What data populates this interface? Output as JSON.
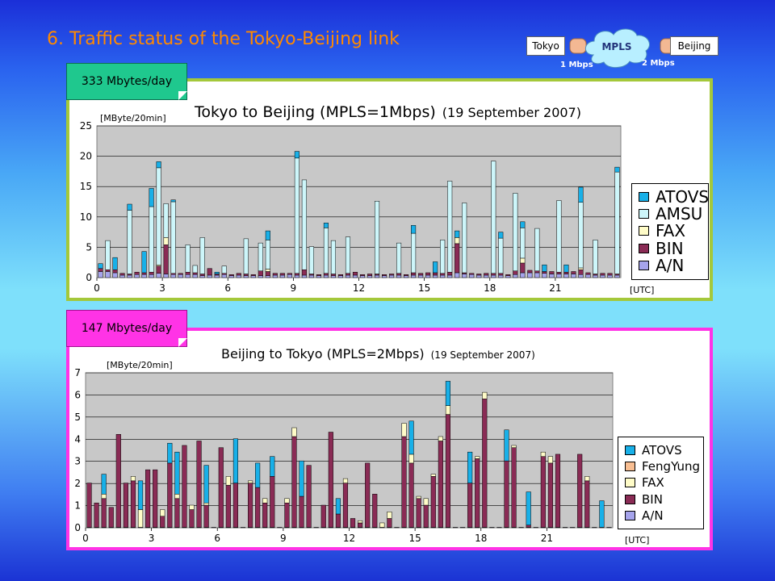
{
  "slide": {
    "title": "6.  Traffic status of the Tokyo-Beijing link"
  },
  "diagram": {
    "left": "Tokyo",
    "center": "MPLS",
    "right": "Beijing",
    "left_rate": "1 Mbps",
    "right_rate": "2 Mbps"
  },
  "notes": {
    "top": "333 Mbytes/day",
    "bottom": "147 Mbytes/day"
  },
  "colors": {
    "ATOVS": "#18b0e8",
    "AMSU": "#cdf6fa",
    "FengYung": "#f8be92",
    "FAX": "#fffcc8",
    "BIN": "#8a2b55",
    "A/N": "#a6a4ec"
  },
  "chart_data": [
    {
      "type": "bar",
      "stacked": true,
      "title": "Tokyo to Beijing (MPLS=1Mbps)",
      "subtitle": "(19 September 2007)",
      "ylabel": "[MByte/20min]",
      "xlabel": "[UTC]",
      "ylim": [
        0,
        25
      ],
      "yticks": [
        0,
        5,
        10,
        15,
        20,
        25
      ],
      "xticks": [
        0,
        3,
        6,
        9,
        12,
        15,
        18,
        21
      ],
      "x_start": 0,
      "x_step": 0.3333,
      "legend": [
        "ATOVS",
        "AMSU",
        "FAX",
        "BIN",
        "A/N"
      ],
      "legend_position": "right",
      "series": [
        {
          "name": "A/N",
          "values": [
            1.0,
            1.0,
            0.8,
            0.4,
            0.4,
            0.5,
            0.5,
            0.5,
            0.7,
            0.6,
            0.5,
            0.5,
            0.5,
            0.5,
            0.3,
            0.4,
            0.4,
            0.5,
            0.3,
            0.4,
            0.3,
            0.3,
            0.3,
            0.3,
            0.4,
            0.4,
            0.5,
            0.4,
            0.4,
            0.4,
            0.3,
            0.4,
            0.3,
            0.3,
            0.4,
            0.4,
            0.3,
            0.3,
            0.4,
            0.3,
            0.4,
            0.4,
            0.3,
            0.4,
            0.4,
            0.4,
            0.4,
            0.4,
            0.4,
            0.8,
            0.6,
            0.5,
            0.4,
            0.4,
            0.4,
            0.4,
            0.3,
            0.5,
            0.8,
            0.8,
            0.8,
            0.7,
            0.6,
            0.6,
            0.6,
            0.6,
            0.5,
            0.5,
            0.4,
            0.4,
            0.4,
            0.4
          ]
        },
        {
          "name": "BIN",
          "values": [
            0.5,
            0.3,
            0.5,
            0.3,
            0.2,
            0.4,
            0.3,
            0.4,
            1.2,
            4.8,
            0.2,
            0.2,
            0.4,
            0.3,
            0.3,
            1.1,
            0.2,
            0.2,
            0.2,
            0.3,
            0.3,
            0.2,
            0.8,
            0.7,
            0.3,
            0.3,
            0.2,
            0.3,
            0.9,
            0.2,
            0.2,
            0.3,
            0.3,
            0.2,
            0.3,
            0.5,
            0.2,
            0.3,
            0.2,
            0.2,
            0.2,
            0.3,
            0.2,
            0.4,
            0.3,
            0.4,
            0.4,
            0.3,
            0.5,
            4.8,
            0.2,
            0.2,
            0.2,
            0.3,
            0.3,
            0.3,
            0.2,
            0.6,
            1.6,
            0.4,
            0.3,
            0.3,
            0.4,
            0.3,
            0.3,
            0.4,
            0.8,
            0.3,
            0.2,
            0.3,
            0.3,
            0.2
          ]
        },
        {
          "name": "FAX",
          "values": [
            0.0,
            0.0,
            0.0,
            0.0,
            0.0,
            0.0,
            0.0,
            0.0,
            0.2,
            1.2,
            0.0,
            0.0,
            0.0,
            0.0,
            0.0,
            0.0,
            0.0,
            0.0,
            0.0,
            0.0,
            0.0,
            0.0,
            0.0,
            0.4,
            0.0,
            0.0,
            0.0,
            0.0,
            0.0,
            0.0,
            0.0,
            0.0,
            0.0,
            0.0,
            0.0,
            0.0,
            0.0,
            0.0,
            0.0,
            0.0,
            0.0,
            0.0,
            0.0,
            0.0,
            0.0,
            0.0,
            0.0,
            0.0,
            0.0,
            1.0,
            0.0,
            0.0,
            0.0,
            0.0,
            0.0,
            0.0,
            0.0,
            0.0,
            0.8,
            0.0,
            0.0,
            0.0,
            0.0,
            0.0,
            0.0,
            0.0,
            0.3,
            0.0,
            0.0,
            0.0,
            0.0,
            0.0
          ]
        },
        {
          "name": "AMSU",
          "values": [
            0.0,
            4.8,
            0.0,
            0.0,
            10.5,
            0.0,
            0.0,
            10.8,
            16.0,
            5.6,
            11.8,
            0.0,
            4.5,
            1.2,
            6.0,
            0.0,
            0.0,
            1.2,
            0.0,
            0.0,
            5.8,
            0.0,
            4.6,
            4.8,
            0.0,
            0.0,
            0.0,
            19.0,
            14.8,
            4.5,
            0.0,
            7.5,
            5.5,
            0.0,
            6.0,
            0.0,
            0.0,
            0.0,
            12.0,
            0.0,
            0.0,
            5.0,
            0.0,
            6.5,
            0.0,
            0.0,
            0.0,
            5.5,
            15.0,
            0.0,
            11.5,
            0.0,
            0.0,
            0.0,
            18.5,
            5.8,
            0.0,
            12.8,
            5.0,
            0.0,
            7.0,
            0.0,
            0.0,
            11.8,
            0.0,
            0.0,
            10.8,
            0.0,
            5.6,
            0.0,
            0.0,
            16.8
          ]
        },
        {
          "name": "ATOVS",
          "values": [
            0.8,
            0.0,
            2.0,
            0.0,
            1.0,
            0.0,
            3.5,
            3.0,
            1.0,
            0.0,
            0.3,
            0.0,
            0.0,
            0.0,
            0.0,
            0.0,
            0.3,
            0.0,
            0.0,
            0.0,
            0.0,
            0.0,
            0.0,
            1.5,
            0.0,
            0.0,
            0.0,
            1.1,
            0.0,
            0.0,
            0.0,
            0.8,
            0.0,
            0.0,
            0.0,
            0.0,
            0.0,
            0.0,
            0.0,
            0.0,
            0.0,
            0.0,
            0.0,
            1.3,
            0.0,
            0.0,
            1.8,
            0.0,
            0.0,
            1.1,
            0.0,
            0.0,
            0.0,
            0.0,
            0.0,
            1.0,
            0.0,
            0.0,
            1.0,
            0.0,
            0.0,
            1.1,
            0.0,
            0.0,
            1.2,
            0.0,
            2.5,
            0.0,
            0.0,
            0.0,
            0.0,
            0.8
          ]
        }
      ]
    },
    {
      "type": "bar",
      "stacked": true,
      "title": "Beijing to Tokyo (MPLS=2Mbps)",
      "subtitle": "(19 September 2007)",
      "ylabel": "[MByte/20min]",
      "xlabel": "[UTC]",
      "ylim": [
        0,
        7
      ],
      "yticks": [
        0,
        1,
        2,
        3,
        4,
        5,
        6,
        7
      ],
      "xticks": [
        0,
        3,
        6,
        9,
        12,
        15,
        18,
        21
      ],
      "x_start": 0,
      "x_step": 0.3333,
      "legend": [
        "ATOVS",
        "FengYung",
        "FAX",
        "BIN",
        "A/N"
      ],
      "legend_position": "right",
      "series": [
        {
          "name": "A/N",
          "values": [
            0.02,
            0.02,
            0.02,
            0.02,
            0.02,
            0.02,
            0.02,
            0.02,
            0.02,
            0.02,
            0.02,
            0.02,
            0.02,
            0.02,
            0.02,
            0.02,
            0.02,
            0.02,
            0.02,
            0.02,
            0.02,
            0.02,
            0.02,
            0.02,
            0.02,
            0.02,
            0.02,
            0.02,
            0.02,
            0.02,
            0.02,
            0.02,
            0.02,
            0.02,
            0.02,
            0.02,
            0.02,
            0.02,
            0.02,
            0.02,
            0.02,
            0.02,
            0.02,
            0.02,
            0.02,
            0.02,
            0.02,
            0.02,
            0.02,
            0.02,
            0.02,
            0.02,
            0.02,
            0.02,
            0.02,
            0.02,
            0.02,
            0.02,
            0.02,
            0.02,
            0.02,
            0.02,
            0.02,
            0.02,
            0.02,
            0.02,
            0.02,
            0.02,
            0.02,
            0.02,
            0.02,
            0.02
          ]
        },
        {
          "name": "BIN",
          "values": [
            2.0,
            1.1,
            1.3,
            0.9,
            4.2,
            2.0,
            2.1,
            0.0,
            2.6,
            2.6,
            0.5,
            2.9,
            1.3,
            3.7,
            0.8,
            3.9,
            1.0,
            0.0,
            3.6,
            1.9,
            2.0,
            0.0,
            2.0,
            1.8,
            1.1,
            2.3,
            0.0,
            1.1,
            4.1,
            1.4,
            2.8,
            0.0,
            1.0,
            4.3,
            0.6,
            2.0,
            0.4,
            0.2,
            2.9,
            1.5,
            0.0,
            0.4,
            0.0,
            4.1,
            2.9,
            1.3,
            1.0,
            2.3,
            3.9,
            5.1,
            0.0,
            0.0,
            2.0,
            3.1,
            5.8,
            0.0,
            0.0,
            3.0,
            3.6,
            0.0,
            0.1,
            0.0,
            3.2,
            2.9,
            3.3,
            0.0,
            0.0,
            3.3,
            2.1,
            0.0,
            0.0,
            0.0
          ]
        },
        {
          "name": "FAX",
          "values": [
            0.0,
            0.0,
            0.2,
            0.0,
            0.0,
            0.0,
            0.2,
            0.8,
            0.0,
            0.0,
            0.3,
            0.0,
            0.2,
            0.0,
            0.2,
            0.0,
            0.1,
            0.0,
            0.0,
            0.4,
            0.0,
            0.0,
            0.1,
            0.0,
            0.2,
            0.0,
            0.0,
            0.2,
            0.4,
            0.0,
            0.0,
            0.0,
            0.0,
            0.0,
            0.0,
            0.2,
            0.0,
            0.1,
            0.0,
            0.0,
            0.2,
            0.3,
            0.0,
            0.6,
            0.4,
            0.1,
            0.3,
            0.1,
            0.2,
            0.4,
            0.0,
            0.0,
            0.0,
            0.1,
            0.3,
            0.0,
            0.0,
            0.0,
            0.1,
            0.0,
            0.0,
            0.0,
            0.2,
            0.3,
            0.0,
            0.0,
            0.0,
            0.0,
            0.2,
            0.0,
            0.0,
            0.0
          ]
        },
        {
          "name": "FengYung",
          "values": [
            0.0,
            0.0,
            0.0,
            0.0,
            0.0,
            0.0,
            0.0,
            0.0,
            0.0,
            0.0,
            0.0,
            0.0,
            0.0,
            0.0,
            0.0,
            0.0,
            0.0,
            0.0,
            0.0,
            0.0,
            0.0,
            0.0,
            0.0,
            0.0,
            0.0,
            0.0,
            0.0,
            0.0,
            0.0,
            0.0,
            0.0,
            0.0,
            0.0,
            0.0,
            0.0,
            0.0,
            0.0,
            0.0,
            0.0,
            0.0,
            0.0,
            0.0,
            0.0,
            0.0,
            0.0,
            0.0,
            0.0,
            0.0,
            0.0,
            0.0,
            0.0,
            0.0,
            0.0,
            0.0,
            0.0,
            0.0,
            0.0,
            0.0,
            0.0,
            0.0,
            0.0,
            0.0,
            0.0,
            0.0,
            0.0,
            0.0,
            0.0,
            0.0,
            0.0,
            0.0,
            0.0,
            0.0
          ]
        },
        {
          "name": "ATOVS",
          "values": [
            0.0,
            0.0,
            0.9,
            0.0,
            0.0,
            0.0,
            0.0,
            1.3,
            0.0,
            0.0,
            0.0,
            0.9,
            1.9,
            0.0,
            0.0,
            0.0,
            1.7,
            0.0,
            0.0,
            0.0,
            2.0,
            0.0,
            0.0,
            1.1,
            0.0,
            0.9,
            0.0,
            0.0,
            0.0,
            1.6,
            0.0,
            0.0,
            0.0,
            0.0,
            0.7,
            0.0,
            0.0,
            0.0,
            0.0,
            0.0,
            0.0,
            0.0,
            0.0,
            0.0,
            1.5,
            0.0,
            0.0,
            0.0,
            0.0,
            1.1,
            0.0,
            0.0,
            1.4,
            0.0,
            0.0,
            0.0,
            0.0,
            1.4,
            0.0,
            0.0,
            1.5,
            0.0,
            0.0,
            0.0,
            0.0,
            0.0,
            0.0,
            0.0,
            0.0,
            0.0,
            1.2,
            0.0
          ]
        }
      ]
    }
  ]
}
